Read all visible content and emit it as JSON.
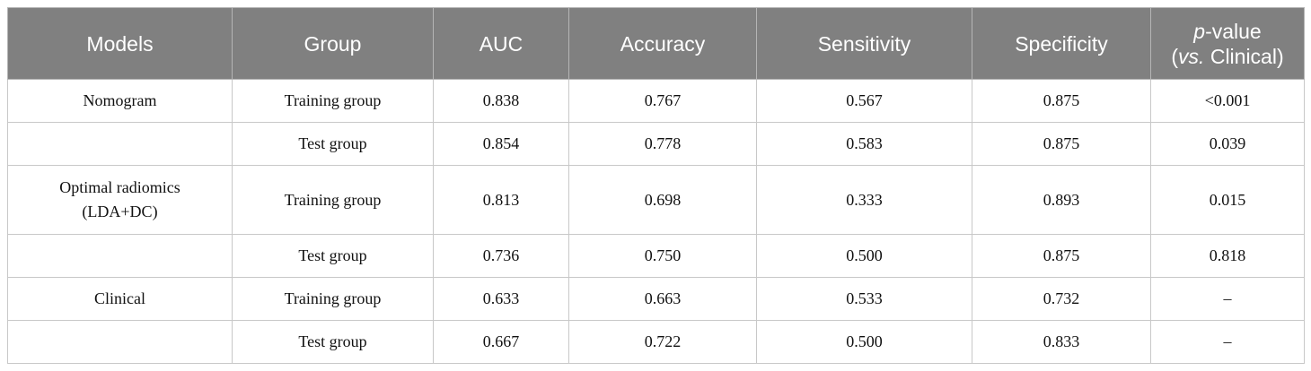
{
  "table": {
    "headers": [
      "Models",
      "Group",
      "AUC",
      "Accuracy",
      "Sensitivity",
      "Specificity"
    ],
    "pvalue_header": [
      "p",
      "-value",
      "(",
      "vs.",
      " Clinical)"
    ],
    "rows": [
      {
        "model": [
          "Nomogram"
        ],
        "group": "Training group",
        "cells": [
          "0.838",
          "0.767",
          "0.567",
          "0.875",
          "<0.001"
        ]
      },
      {
        "group": "Test group",
        "cells": [
          "0.854",
          "0.778",
          "0.583",
          "0.875",
          "0.039"
        ]
      },
      {
        "model": [
          "Optimal radiomics",
          "(LDA+DC)"
        ],
        "group": "Training group",
        "cells": [
          "0.813",
          "0.698",
          "0.333",
          "0.893",
          "0.015"
        ]
      },
      {
        "group": "Test group",
        "cells": [
          "0.736",
          "0.750",
          "0.500",
          "0.875",
          "0.818"
        ]
      },
      {
        "model": [
          "Clinical"
        ],
        "group": "Training group",
        "cells": [
          "0.633",
          "0.663",
          "0.533",
          "0.732",
          "–"
        ]
      },
      {
        "group": "Test group",
        "cells": [
          "0.667",
          "0.722",
          "0.500",
          "0.833",
          "–"
        ]
      }
    ]
  }
}
